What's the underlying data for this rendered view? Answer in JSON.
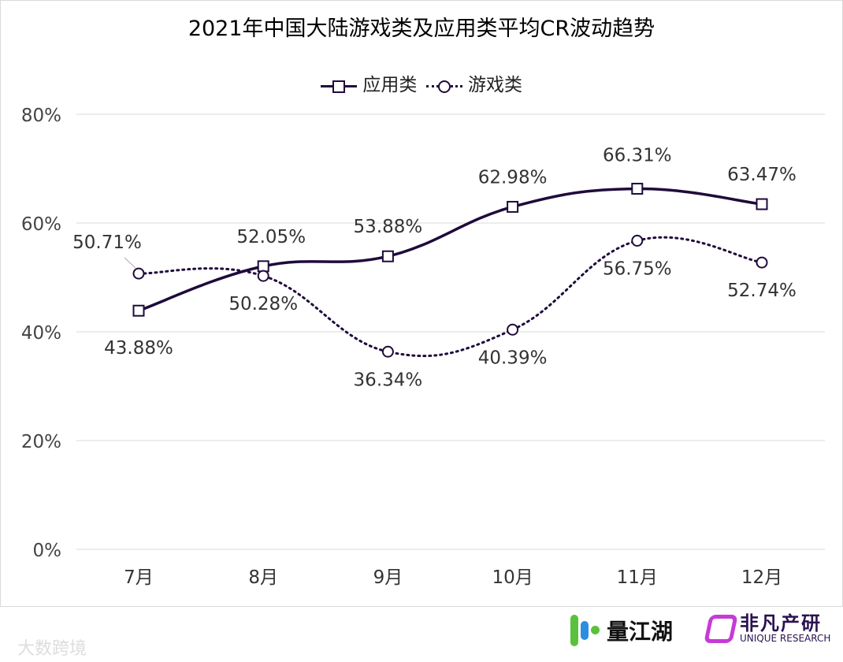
{
  "chart_data": {
    "type": "line",
    "title": "2021年中国大陆游戏类及应用类平均CR波动趋势",
    "categories": [
      "7月",
      "8月",
      "9月",
      "10月",
      "11月",
      "12月"
    ],
    "ylim": [
      0,
      80
    ],
    "yticks": [
      "0%",
      "20%",
      "40%",
      "60%",
      "80%"
    ],
    "grid": true,
    "legend_position": "top",
    "series": [
      {
        "name": "应用类",
        "values": [
          43.88,
          52.05,
          53.88,
          62.98,
          66.31,
          63.47
        ],
        "labels": [
          "43.88%",
          "52.05%",
          "53.88%",
          "62.98%",
          "66.31%",
          "63.47%"
        ],
        "style": "solid",
        "marker": "square",
        "color": "#1f0a3c"
      },
      {
        "name": "游戏类",
        "values": [
          50.71,
          50.28,
          36.34,
          40.39,
          56.75,
          52.74
        ],
        "labels": [
          "50.71%",
          "50.28%",
          "36.34%",
          "40.39%",
          "56.75%",
          "52.74%"
        ],
        "style": "dotted",
        "marker": "circle",
        "color": "#1f0a3c"
      }
    ]
  },
  "footer": {
    "watermark": "大数跨境",
    "logo1": "量江湖",
    "logo2_cn": "非凡产研",
    "logo2_en": "UNIQUE RESEARCH"
  }
}
